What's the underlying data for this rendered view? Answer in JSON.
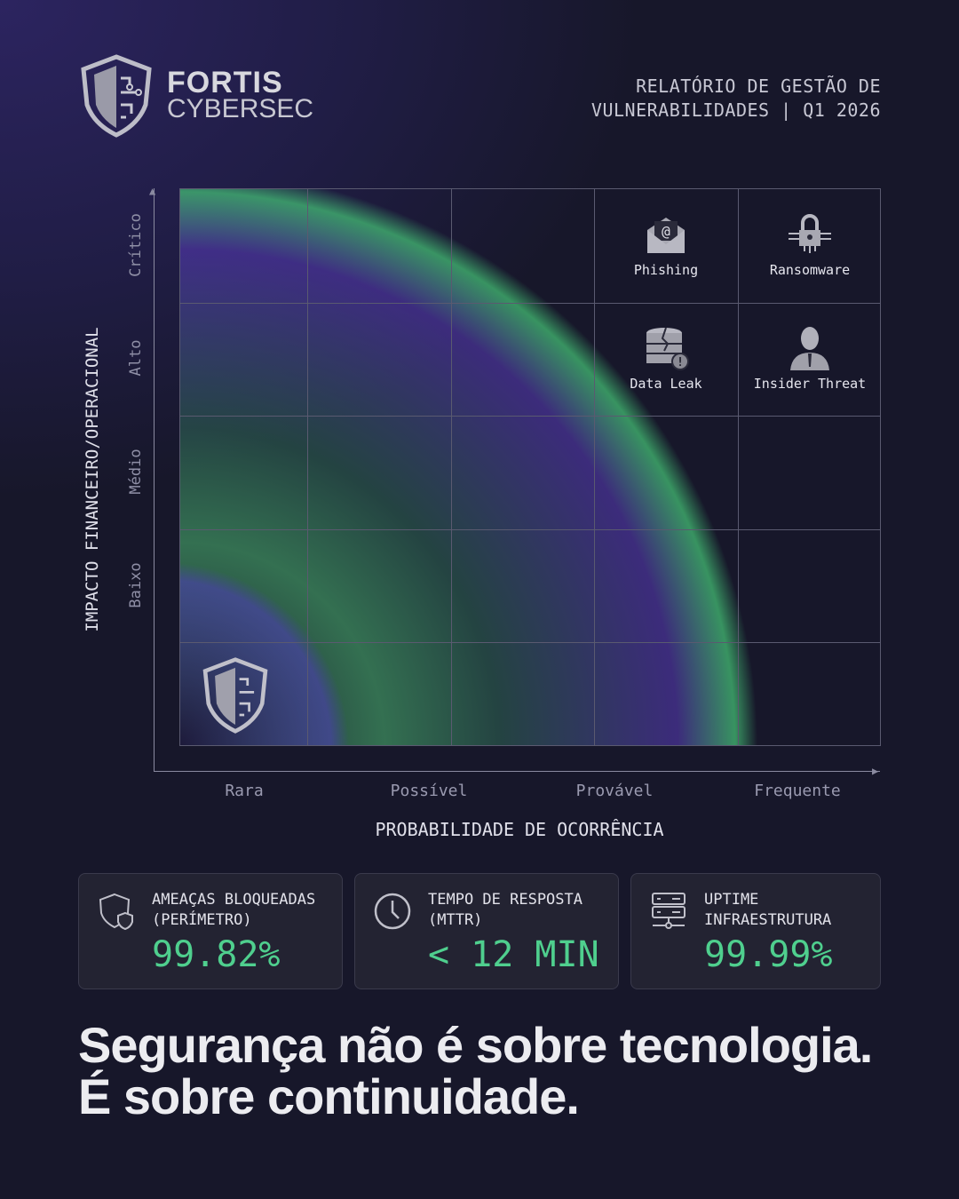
{
  "brand": {
    "name_top": "FORTIS",
    "name_bottom": "CYBERSEC"
  },
  "report": {
    "line1": "RELATÓRIO DE GESTÃO DE",
    "line2": "VULNERABILIDADES | Q1 2026"
  },
  "chart_data": {
    "type": "risk-matrix",
    "xlabel": "PROBABILIDADE DE OCORRÊNCIA",
    "ylabel": "IMPACTO FINANCEIRO/OPERACIONAL",
    "x_ticks": [
      "Rara",
      "Possível",
      "Provável",
      "Frequente"
    ],
    "y_ticks": [
      "Crítico",
      "Alto",
      "Médio",
      "Baixo"
    ],
    "grid": true,
    "items": [
      {
        "label": "Phishing",
        "icon": "envelope-at-icon",
        "column": 4,
        "row": 1
      },
      {
        "label": "Ransomware",
        "icon": "padlock-circuit-icon",
        "column": 5,
        "row": 1
      },
      {
        "label": "Data Leak",
        "icon": "broken-database-icon",
        "column": 4,
        "row": 2
      },
      {
        "label": "Insider Threat",
        "icon": "person-silhouette-icon",
        "column": 5,
        "row": 2
      }
    ],
    "colors": {
      "glow_green": "#4fcf8e",
      "glow_purple": "#5a3cc0"
    }
  },
  "metrics": [
    {
      "label1": "AMEAÇAS BLOQUEADAS",
      "label2": "(PERÍMETRO)",
      "value": "99.82%",
      "icon": "shield-icon"
    },
    {
      "label1": "TEMPO DE RESPOSTA",
      "label2": "(MTTR)",
      "value": "< 12 MIN",
      "icon": "clock-icon"
    },
    {
      "label1": "UPTIME",
      "label2": "INFRAESTRUTURA",
      "value": "99.99%",
      "icon": "server-icon"
    }
  ],
  "tagline": {
    "line1": "Segurança não é sobre tecnologia.",
    "line2": "É sobre continuidade."
  },
  "accent": "#4fcf8e"
}
